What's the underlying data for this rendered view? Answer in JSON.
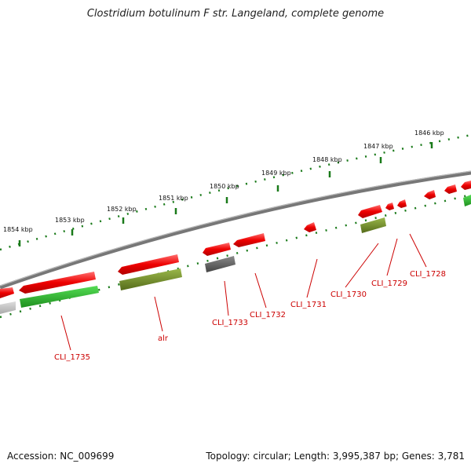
{
  "title": "Clostridium botulinum F str. Langeland, complete genome",
  "footer": {
    "accession": "Accession: NC_009699",
    "stats": "Topology: circular; Length: 3,995,387 bp; Genes: 3,781"
  },
  "ruler_labels": [
    "1854 kbp",
    "1853 kbp",
    "1852 kbp",
    "1851 kbp",
    "1850 kbp",
    "1849 kbp",
    "1848 kbp",
    "1847 kbp",
    "1846 kbp"
  ],
  "gene_labels": [
    "CLI_1735",
    "alr",
    "CLI_1733",
    "CLI_1732",
    "CLI_1731",
    "CLI_1730",
    "CLI_1729",
    "CLI_1728"
  ],
  "colors": {
    "forward_gene": "#ee0000",
    "reverse_gene": "#22aa22",
    "olive_gene": "#6b8e23",
    "grey_gene": "#666666",
    "ruler_tick": "#1a7a1a",
    "label": "#cc0000"
  }
}
